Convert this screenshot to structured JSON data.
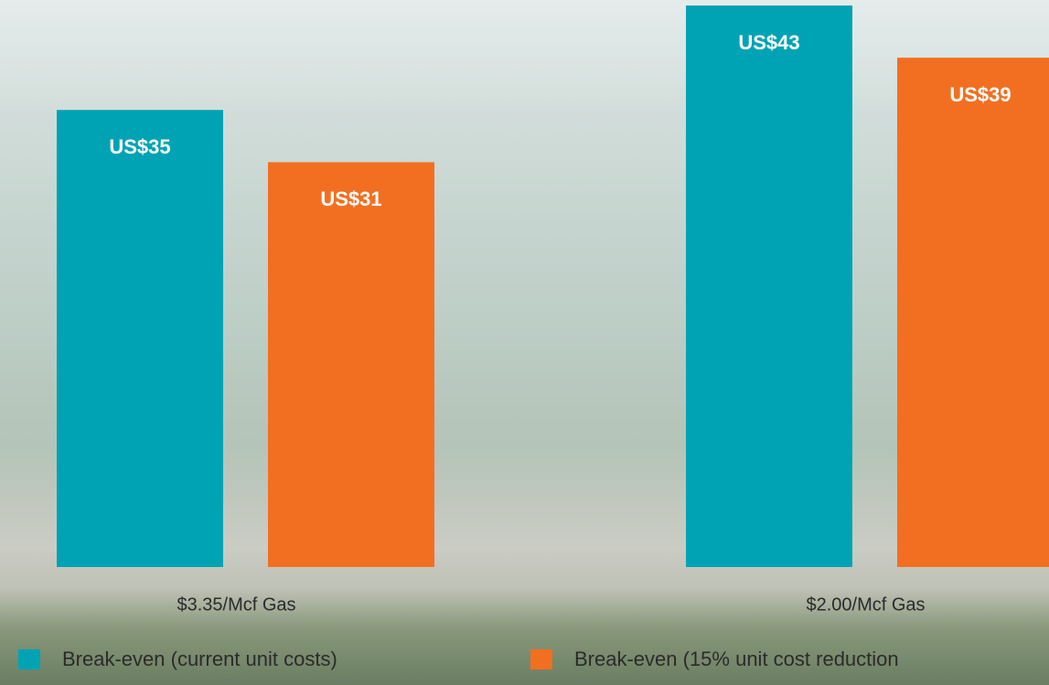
{
  "chart_data": {
    "type": "bar",
    "categories": [
      "$3.35/Mcf Gas",
      "$2.00/Mcf Gas"
    ],
    "series": [
      {
        "name": "Break-even (current unit costs)",
        "color": "#00a3b4",
        "values": [
          35,
          43
        ],
        "value_labels": [
          "US$35",
          "US$43"
        ]
      },
      {
        "name": "Break-even (15% unit cost reduction",
        "color": "#f26f21",
        "values": [
          31,
          39
        ],
        "value_labels": [
          "US$31",
          "US$39"
        ]
      }
    ]
  }
}
